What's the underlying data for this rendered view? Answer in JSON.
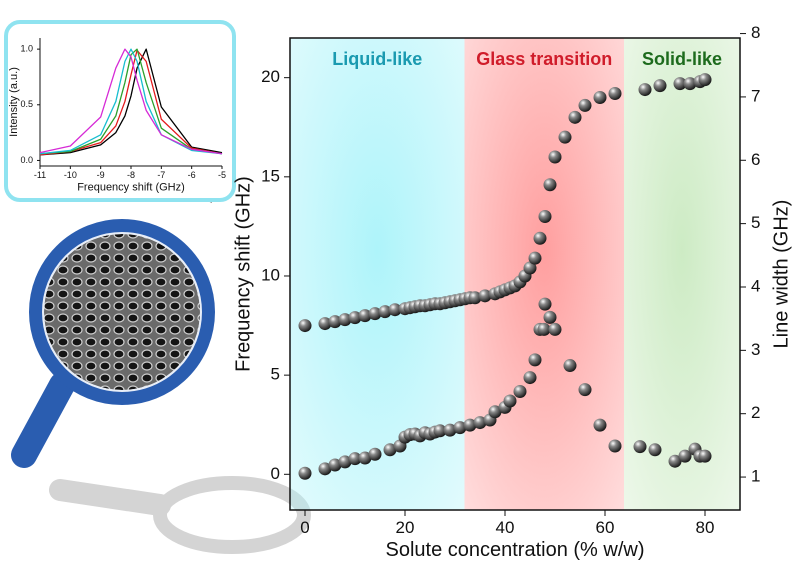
{
  "chart_data": [
    {
      "type": "scatter",
      "xlabel": "Solute concentration (% w/w)",
      "ylabel": "Frequency shift (GHz)",
      "y2label": "Line width (GHz)",
      "xlim": [
        -3,
        87
      ],
      "xticks": [
        0,
        20,
        40,
        60,
        80
      ],
      "ylim": [
        -1.8,
        22
      ],
      "yticks": [
        0,
        5,
        10,
        15,
        20
      ],
      "y2lim": [
        0.48,
        7.93
      ],
      "y2ticks": [
        1,
        2,
        3,
        4,
        5,
        6,
        7,
        8
      ],
      "regions": [
        {
          "label": "Liquid-like",
          "from": -3,
          "to": 31.9,
          "color": "#aef4fa",
          "label_color": "#1a9ab0"
        },
        {
          "label": "Glass transition",
          "from": 31.9,
          "to": 63.8,
          "color": "#ff9f9f",
          "label_color": "#d01c2a"
        },
        {
          "label": "Solid-like",
          "from": 63.8,
          "to": 87,
          "color": "#cdebc4",
          "label_color": "#1d6b1d"
        }
      ],
      "series": [
        {
          "color": "#1a1a1a",
          "x": [
            0,
            4,
            6,
            8,
            10,
            12,
            14,
            16,
            18,
            20,
            21,
            22,
            23,
            24,
            25,
            26,
            27,
            28,
            29,
            30,
            31,
            32,
            33,
            34,
            36,
            38,
            39,
            40,
            41,
            42,
            43,
            44,
            45,
            46,
            47,
            48,
            49,
            50,
            52,
            54,
            56,
            59,
            62,
            68,
            71,
            75,
            77,
            79,
            80
          ],
          "values": [
            7.5,
            7.6,
            7.7,
            7.8,
            7.9,
            8.0,
            8.1,
            8.2,
            8.3,
            8.35,
            8.4,
            8.45,
            8.5,
            8.5,
            8.55,
            8.6,
            8.6,
            8.65,
            8.7,
            8.75,
            8.8,
            8.85,
            8.9,
            8.9,
            9.0,
            9.1,
            9.2,
            9.3,
            9.4,
            9.5,
            9.7,
            10.0,
            10.4,
            10.9,
            11.9,
            13.0,
            14.6,
            16.0,
            17.0,
            18.0,
            18.6,
            19.0,
            19.2,
            19.4,
            19.6,
            19.7,
            19.7,
            19.8,
            19.9
          ]
        },
        {
          "color": "#1a1a1a",
          "axis": "y2",
          "x": [
            0,
            4,
            6,
            8,
            10,
            12,
            14,
            17,
            19,
            20,
            21,
            22,
            23,
            24,
            25,
            26,
            27,
            29,
            31,
            33,
            35,
            37,
            38,
            40,
            41,
            43,
            45,
            46,
            47,
            47.8,
            48,
            49,
            50,
            53,
            56,
            59,
            62,
            67,
            70,
            74,
            76,
            78,
            79,
            80
          ],
          "values": [
            1.06,
            1.13,
            1.19,
            1.24,
            1.29,
            1.3,
            1.36,
            1.43,
            1.49,
            1.63,
            1.67,
            1.68,
            1.65,
            1.7,
            1.68,
            1.71,
            1.73,
            1.74,
            1.78,
            1.82,
            1.86,
            1.9,
            2.03,
            2.1,
            2.2,
            2.35,
            2.57,
            2.85,
            3.33,
            3.33,
            3.73,
            3.52,
            3.33,
            2.76,
            2.38,
            1.82,
            1.49,
            1.48,
            1.43,
            1.25,
            1.33,
            1.44,
            1.33,
            1.33
          ]
        }
      ]
    },
    {
      "type": "line",
      "xlabel": "Frequency shift (GHz)",
      "ylabel": "Intensity (a.u.)",
      "xlim": [
        -11,
        -5
      ],
      "xticks": [
        -11,
        -10,
        -9,
        -8,
        -7,
        -6,
        -5
      ],
      "ylim": [
        -0.05,
        1.1
      ],
      "yticks": [
        {
          "value": 0,
          "label": "0.0"
        },
        {
          "value": 0.5,
          "label": "0.5"
        },
        {
          "value": 1,
          "label": "1.0"
        }
      ],
      "x": [
        -11,
        -10,
        -9,
        -8.5,
        -8.2,
        -8,
        -7.8,
        -7.5,
        -7,
        -6,
        -5
      ],
      "series": [
        {
          "color": "#000000",
          "values": [
            0.05,
            0.07,
            0.14,
            0.25,
            0.4,
            0.58,
            0.83,
            1.0,
            0.48,
            0.12,
            0.07
          ]
        },
        {
          "color": "#e41a1c",
          "values": [
            0.05,
            0.08,
            0.16,
            0.31,
            0.53,
            0.77,
            0.99,
            0.89,
            0.37,
            0.11,
            0.06
          ]
        },
        {
          "color": "#2ca02c",
          "values": [
            0.06,
            0.08,
            0.19,
            0.4,
            0.7,
            0.95,
            1.0,
            0.7,
            0.29,
            0.1,
            0.06
          ]
        },
        {
          "color": "#17becf",
          "values": [
            0.06,
            0.09,
            0.23,
            0.53,
            0.89,
            1.0,
            0.89,
            0.53,
            0.23,
            0.09,
            0.06
          ]
        },
        {
          "color": "#d62ad6",
          "values": [
            0.07,
            0.13,
            0.39,
            0.83,
            1.0,
            0.93,
            0.72,
            0.45,
            0.23,
            0.1,
            0.06
          ]
        }
      ]
    }
  ]
}
